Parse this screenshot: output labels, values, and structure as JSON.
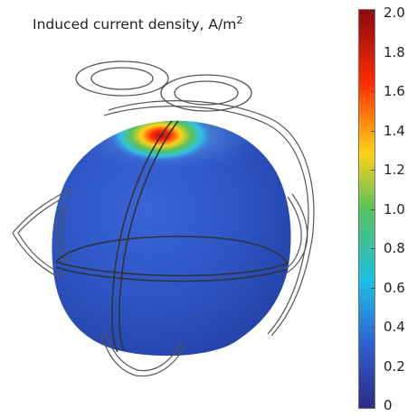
{
  "title": {
    "text": "Induced current density, A/m",
    "superscript": "2"
  },
  "colorbar": {
    "min": 0,
    "max": 2.0,
    "tick_labels": [
      "2.0",
      "1.8",
      "1.6",
      "1.4",
      "1.2",
      "1.0",
      "0.8",
      "0.6",
      "0.4",
      "0.2",
      "0"
    ],
    "tick_values": [
      2.0,
      1.8,
      1.6,
      1.4,
      1.2,
      1.0,
      0.8,
      0.6,
      0.4,
      0.2,
      0
    ],
    "colors": {
      "high": "#8b0a10",
      "upper": "#ff2a00",
      "mid_high": "#ffd21a",
      "mid": "#58c25a",
      "mid_low": "#1ec0e6",
      "low": "#2f5fd0",
      "bottom": "#2c2a86"
    }
  },
  "sphere": {
    "base_color": "#2f56c8",
    "hotspot_color": "#ff2a00"
  }
}
